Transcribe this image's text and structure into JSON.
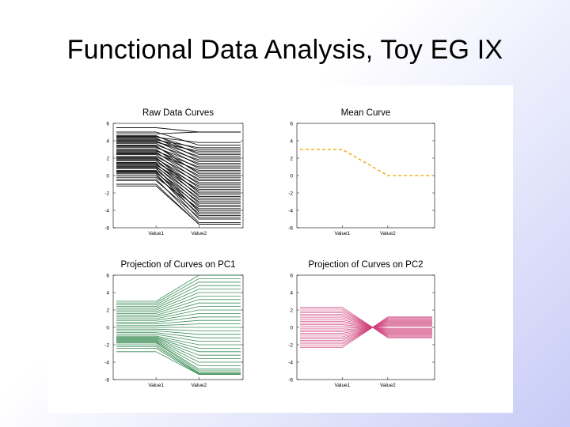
{
  "slide": {
    "title": "Functional Data Analysis, Toy EG IX"
  },
  "chart_data": [
    {
      "type": "line",
      "title": "Raw Data Curves",
      "x": [
        "Value1",
        "Value2"
      ],
      "ylim": [
        -6,
        6
      ],
      "yticks": [
        6,
        4,
        2,
        0,
        -2,
        -4,
        -6
      ],
      "color": "#000000",
      "series_description": "about 60 piecewise-linear curves, each flat at its Value1 level, joined by a line to its Value2 level",
      "value1_levels": [
        5.5,
        5.0,
        4.8,
        4.6,
        4.5,
        4.4,
        4.3,
        4.2,
        4.1,
        4.0,
        3.9,
        3.8,
        3.7,
        3.5,
        3.4,
        3.3,
        3.2,
        3.0,
        2.9,
        2.8,
        2.7,
        2.6,
        2.5,
        2.4,
        2.2,
        2.1,
        2.0,
        1.9,
        1.8,
        1.7,
        1.5,
        1.4,
        1.3,
        1.2,
        1.1,
        1.0,
        0.9,
        0.8,
        0.6,
        0.5,
        0.4,
        0.3,
        0.2,
        0.0,
        -0.2,
        -0.4,
        -0.6,
        -1.0,
        -1.2
      ],
      "value2_levels": [
        5.0,
        4.0,
        3.8,
        3.5,
        3.2,
        3.0,
        2.8,
        2.6,
        2.4,
        2.2,
        2.0,
        1.8,
        1.6,
        1.4,
        1.2,
        1.0,
        0.8,
        0.6,
        0.4,
        0.2,
        0.0,
        -0.2,
        -0.4,
        -0.6,
        -0.8,
        -1.0,
        -1.2,
        -1.4,
        -1.6,
        -1.8,
        -2.0,
        -2.2,
        -2.4,
        -2.6,
        -2.8,
        -3.0,
        -3.2,
        -3.4,
        -3.6,
        -3.8,
        -4.0,
        -4.2,
        -4.4,
        -4.6,
        -4.8,
        -5.0,
        -5.2,
        -5.4,
        -5.6
      ]
    },
    {
      "type": "line",
      "title": "Mean Curve",
      "x": [
        "Value1",
        "Value2"
      ],
      "ylim": [
        -6,
        6
      ],
      "yticks": [
        6,
        4,
        2,
        0,
        -2,
        -4,
        -6
      ],
      "color": "#f0b020",
      "line_style": "dashed",
      "series": [
        {
          "values": [
            3,
            0
          ]
        }
      ]
    },
    {
      "type": "line",
      "title": "Projection of Curves on PC1",
      "x": [
        "Value1",
        "Value2"
      ],
      "ylim": [
        -6,
        6
      ],
      "yticks": [
        6,
        4,
        2,
        0,
        -2,
        -4,
        -6
      ],
      "color": "#1a7a3a",
      "series_description": "curves projected on PC1: Value1 levels spread from about -2.8 to 3, fanning out to Value2 levels from about -5.4 to 6",
      "value1_levels": [
        3.0,
        2.8,
        2.6,
        2.4,
        2.2,
        2.0,
        1.8,
        1.6,
        1.4,
        1.2,
        1.0,
        0.8,
        0.6,
        0.4,
        0.2,
        0.0,
        -0.2,
        -0.4,
        -0.6,
        -0.8,
        -1.0,
        -1.1,
        -1.2,
        -1.3,
        -1.4,
        -1.5,
        -1.6,
        -1.7,
        -1.8,
        -2.0,
        -2.2,
        -2.4,
        -2.8
      ],
      "value2_levels": [
        6.0,
        5.6,
        5.2,
        4.8,
        4.4,
        4.0,
        3.6,
        3.2,
        2.8,
        2.4,
        2.0,
        1.6,
        1.2,
        0.8,
        0.4,
        0.0,
        -0.4,
        -0.8,
        -1.2,
        -1.6,
        -2.0,
        -2.4,
        -2.8,
        -3.2,
        -3.6,
        -4.0,
        -4.4,
        -4.8,
        -5.0,
        -5.2,
        -5.3,
        -5.4,
        -5.4
      ]
    },
    {
      "type": "line",
      "title": "Projection of Curves on PC2",
      "x": [
        "Value1",
        "Value2"
      ],
      "ylim": [
        -6,
        6
      ],
      "yticks": [
        6,
        4,
        2,
        0,
        -2,
        -4,
        -6
      ],
      "color": "#d0407a",
      "series_description": "curves projected on PC2: Value1 levels between about -2.3 and 2.3 all crossing near 0 just before Value2, Value2 levels between about -1.2 and 1.2",
      "value1_levels": [
        2.3,
        2.1,
        1.9,
        1.7,
        1.5,
        1.3,
        1.1,
        0.9,
        0.7,
        0.5,
        0.3,
        0.1,
        -0.1,
        -0.3,
        -0.5,
        -0.7,
        -0.9,
        -1.1,
        -1.3,
        -1.5,
        -1.7,
        -1.9,
        -2.1,
        -2.3
      ],
      "value2_levels": [
        1.2,
        1.1,
        1.0,
        0.9,
        0.8,
        0.7,
        0.6,
        0.5,
        0.4,
        0.3,
        0.2,
        0.1,
        -0.1,
        -0.2,
        -0.3,
        -0.4,
        -0.5,
        -0.6,
        -0.7,
        -0.8,
        -0.9,
        -1.0,
        -1.1,
        -1.2
      ]
    }
  ]
}
